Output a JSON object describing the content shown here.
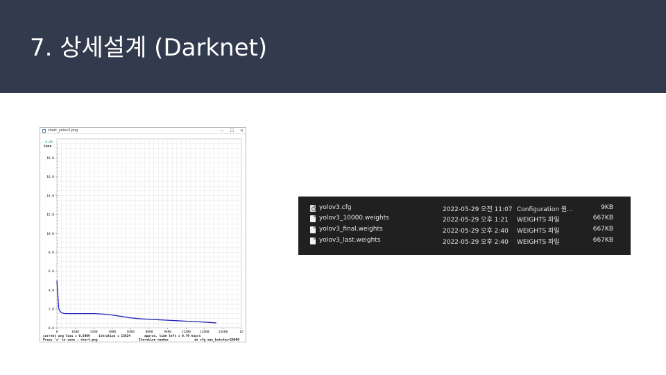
{
  "slide": {
    "title": "7. 상세설계 (Darknet)"
  },
  "chart_window": {
    "title": "chart_yolov3.png",
    "controls": [
      "—",
      "☐",
      "✕"
    ]
  },
  "chart_data": {
    "type": "line",
    "title": "",
    "ylabel": "Loss",
    "xlabel": "Iteration number",
    "legend_text": "- 0.05",
    "xlim": [
      0,
      16000
    ],
    "ylim": [
      0,
      20
    ],
    "x_ticks": [
      "0",
      "1600",
      "3200",
      "4800",
      "6400",
      "8000",
      "9600",
      "11200",
      "12800",
      "14400",
      "16"
    ],
    "y_ticks": [
      "0.0",
      "2.0",
      "4.0",
      "6.0",
      "8.0",
      "10.0",
      "12.0",
      "14.0",
      "16.0",
      "18.0"
    ],
    "grid": true,
    "footer": {
      "current_loss": "current avg loss = 0.5069",
      "iteration": "iteration = 13824",
      "time_left": "approx. time left = 0.79 hours",
      "save_hint": "Press 's' to save : chart.png",
      "max_batches": "in cfg max_batches=10000"
    },
    "series": [
      {
        "color": "#1f1fb4",
        "x": [
          0,
          50,
          100,
          150,
          200,
          300,
          400,
          500,
          700,
          1000,
          1600,
          2400,
          3200,
          4000,
          4800,
          5600,
          6400,
          7200,
          8000,
          8800,
          9600,
          10400,
          11200,
          12000,
          12800,
          13400,
          13824
        ],
        "y": [
          5.0,
          4.0,
          3.2,
          2.2,
          1.9,
          1.7,
          1.6,
          1.55,
          1.5,
          1.5,
          1.5,
          1.5,
          1.5,
          1.45,
          1.35,
          1.2,
          1.05,
          0.95,
          0.9,
          0.85,
          0.8,
          0.75,
          0.7,
          0.65,
          0.6,
          0.55,
          0.51
        ]
      }
    ]
  },
  "files": {
    "rows": [
      {
        "name": "yolov3.cfg",
        "date": "2022-05-29 오전 11:07",
        "type": "Configuration 원...",
        "size": "9KB",
        "icon": "config-file-icon"
      },
      {
        "name": "yolov3_10000.weights",
        "date": "2022-05-29 오후 1:21",
        "type": "WEIGHTS 파일",
        "size": "667KB",
        "icon": "file-icon"
      },
      {
        "name": "yolov3_final.weights",
        "date": "2022-05-29 오후 2:40",
        "type": "WEIGHTS 파일",
        "size": "667KB",
        "icon": "file-icon"
      },
      {
        "name": "yolov3_last.weights",
        "date": "2022-05-29 오후 2:40",
        "type": "WEIGHTS 파일",
        "size": "667KB",
        "icon": "file-icon"
      }
    ]
  }
}
